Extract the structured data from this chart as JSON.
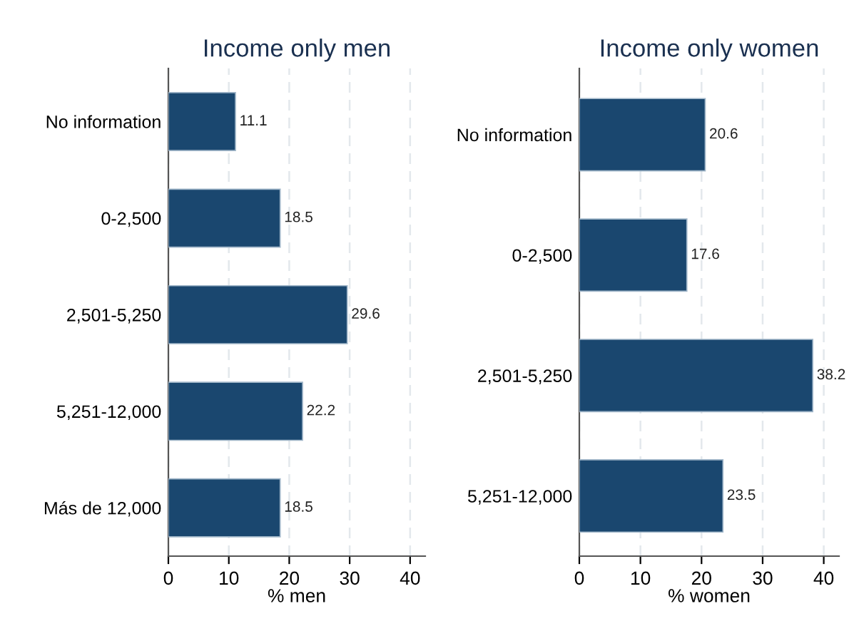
{
  "chart_data": [
    {
      "type": "bar",
      "orientation": "horizontal",
      "title": "Income only men",
      "xlabel": "% men",
      "categories": [
        "No information",
        "0-2,500",
        "2,501-5,250",
        "5,251-12,000",
        "Más de 12,000"
      ],
      "values": [
        11.1,
        18.5,
        29.6,
        22.2,
        18.5
      ],
      "color": "#1a476f",
      "xlim": [
        0,
        42.5
      ],
      "xticks": [
        0,
        10,
        20,
        30,
        40
      ],
      "grid": "x",
      "data_labels": true
    },
    {
      "type": "bar",
      "orientation": "horizontal",
      "title": "Income only women",
      "xlabel": "% women",
      "categories": [
        "No information",
        "0-2,500",
        "2,501-5,250",
        "5,251-12,000"
      ],
      "values": [
        20.6,
        17.6,
        38.2,
        23.5
      ],
      "color": "#1a476f",
      "xlim": [
        0,
        42.5
      ],
      "xticks": [
        0,
        10,
        20,
        30,
        40
      ],
      "grid": "x",
      "data_labels": true
    }
  ]
}
